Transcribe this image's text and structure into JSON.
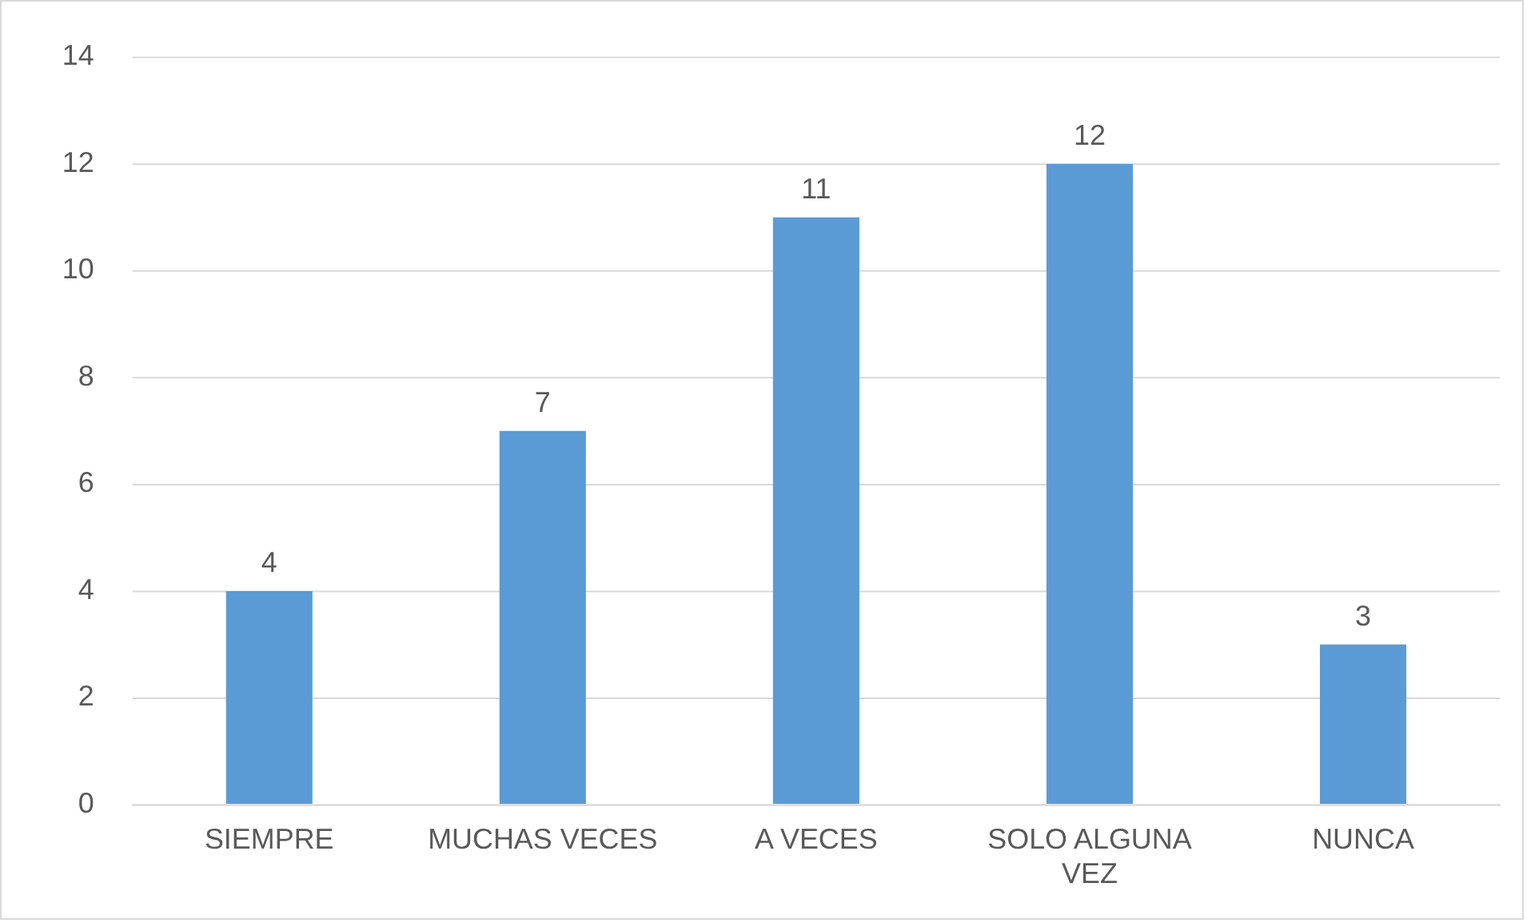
{
  "chart_data": {
    "type": "bar",
    "categories": [
      "SIEMPRE",
      "MUCHAS VECES",
      "A VECES",
      "SOLO ALGUNA VEZ",
      "NUNCA"
    ],
    "values": [
      4,
      7,
      11,
      12,
      3
    ],
    "color": "#5b9bd5",
    "ylim": [
      0,
      14
    ],
    "yticks": [
      0,
      2,
      4,
      6,
      8,
      10,
      12,
      14
    ],
    "grid": "y",
    "data_labels": true,
    "legend": false
  }
}
